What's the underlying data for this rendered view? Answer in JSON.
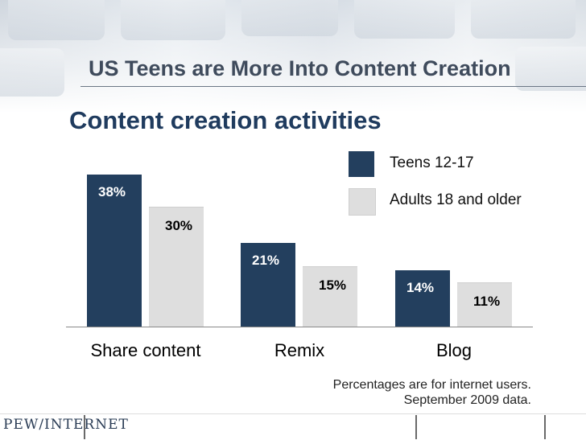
{
  "slide": {
    "title": "US Teens are More Into Content Creation",
    "logo": "PEW/INTERNET"
  },
  "chart_data": {
    "type": "bar",
    "title": "Content creation activities",
    "categories": [
      "Share content",
      "Remix",
      "Blog"
    ],
    "series": [
      {
        "name": "Teens 12-17",
        "values": [
          38,
          21,
          14
        ],
        "labels": [
          "38%",
          "21%",
          "14%"
        ],
        "color": "#233f5e",
        "label_color": "#ffffff"
      },
      {
        "name": "Adults 18 and older",
        "values": [
          30,
          15,
          11
        ],
        "labels": [
          "30%",
          "15%",
          "11%"
        ],
        "color": "#dedede",
        "label_color": "#000000"
      }
    ],
    "ylim": [
      0,
      38
    ],
    "legend_position": "top-right",
    "notes": [
      "Percentages are for internet users.",
      "September 2009 data."
    ]
  }
}
